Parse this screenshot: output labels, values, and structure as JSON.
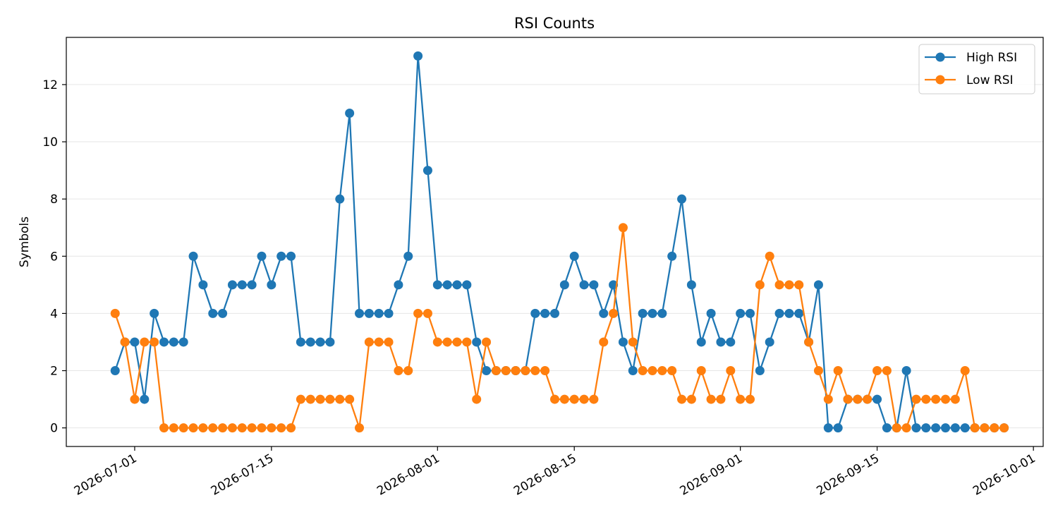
{
  "chart_data": {
    "type": "line",
    "title": "RSI Counts",
    "xlabel": "",
    "ylabel": "Symbols",
    "xlim": [
      "2026-06-24",
      "2026-10-02"
    ],
    "ylim": [
      -0.65,
      13.65
    ],
    "grid": "horizontal",
    "legend_position": "top-right",
    "x_ticks": [
      "2026-07-01",
      "2026-07-15",
      "2026-08-01",
      "2026-08-15",
      "2026-09-01",
      "2026-09-15",
      "2026-10-01"
    ],
    "y_ticks": [
      0,
      2,
      4,
      6,
      8,
      10,
      12
    ],
    "x": [
      "2026-06-29",
      "2026-06-30",
      "2026-07-01",
      "2026-07-02",
      "2026-07-03",
      "2026-07-04",
      "2026-07-05",
      "2026-07-06",
      "2026-07-07",
      "2026-07-08",
      "2026-07-09",
      "2026-07-10",
      "2026-07-11",
      "2026-07-12",
      "2026-07-13",
      "2026-07-14",
      "2026-07-15",
      "2026-07-16",
      "2026-07-17",
      "2026-07-18",
      "2026-07-19",
      "2026-07-20",
      "2026-07-21",
      "2026-07-22",
      "2026-07-23",
      "2026-07-24",
      "2026-07-25",
      "2026-07-26",
      "2026-07-27",
      "2026-07-28",
      "2026-07-29",
      "2026-07-30",
      "2026-07-31",
      "2026-08-01",
      "2026-08-02",
      "2026-08-03",
      "2026-08-04",
      "2026-08-05",
      "2026-08-06",
      "2026-08-07",
      "2026-08-08",
      "2026-08-09",
      "2026-08-10",
      "2026-08-11",
      "2026-08-12",
      "2026-08-13",
      "2026-08-14",
      "2026-08-15",
      "2026-08-16",
      "2026-08-17",
      "2026-08-18",
      "2026-08-19",
      "2026-08-20",
      "2026-08-21",
      "2026-08-22",
      "2026-08-23",
      "2026-08-24",
      "2026-08-25",
      "2026-08-26",
      "2026-08-27",
      "2026-08-28",
      "2026-08-29",
      "2026-08-30",
      "2026-08-31",
      "2026-09-01",
      "2026-09-02",
      "2026-09-03",
      "2026-09-04",
      "2026-09-05",
      "2026-09-06",
      "2026-09-07",
      "2026-09-08",
      "2026-09-09",
      "2026-09-10",
      "2026-09-11",
      "2026-09-12",
      "2026-09-13",
      "2026-09-14",
      "2026-09-15",
      "2026-09-16",
      "2026-09-17",
      "2026-09-18",
      "2026-09-19",
      "2026-09-20",
      "2026-09-21",
      "2026-09-22",
      "2026-09-23",
      "2026-09-24",
      "2026-09-25",
      "2026-09-26",
      "2026-09-27",
      "2026-09-28"
    ],
    "series": [
      {
        "name": "High RSI",
        "color": "#1f77b4",
        "values": [
          2,
          3,
          3,
          1,
          4,
          3,
          3,
          3,
          6,
          5,
          4,
          4,
          5,
          5,
          5,
          6,
          5,
          6,
          6,
          3,
          3,
          3,
          3,
          8,
          11,
          4,
          4,
          4,
          4,
          5,
          6,
          13,
          9,
          5,
          5,
          5,
          5,
          3,
          2,
          2,
          2,
          2,
          2,
          4,
          4,
          4,
          5,
          6,
          5,
          5,
          4,
          5,
          3,
          2,
          4,
          4,
          4,
          6,
          8,
          5,
          3,
          4,
          3,
          3,
          4,
          4,
          2,
          3,
          4,
          4,
          4,
          3,
          5,
          0,
          0,
          1,
          1,
          1,
          1,
          0,
          0,
          2,
          0,
          0,
          0,
          0,
          0,
          0,
          0,
          0,
          0,
          0
        ]
      },
      {
        "name": "Low RSI",
        "color": "#ff7f0e",
        "values": [
          4,
          3,
          1,
          3,
          3,
          0,
          0,
          0,
          0,
          0,
          0,
          0,
          0,
          0,
          0,
          0,
          0,
          0,
          0,
          1,
          1,
          1,
          1,
          1,
          1,
          0,
          3,
          3,
          3,
          2,
          2,
          4,
          4,
          3,
          3,
          3,
          3,
          1,
          3,
          2,
          2,
          2,
          2,
          2,
          2,
          1,
          1,
          1,
          1,
          1,
          3,
          4,
          7,
          3,
          2,
          2,
          2,
          2,
          1,
          1,
          2,
          1,
          1,
          2,
          1,
          1,
          5,
          6,
          5,
          5,
          5,
          3,
          2,
          1,
          2,
          1,
          1,
          1,
          2,
          2,
          0,
          0,
          1,
          1,
          1,
          1,
          1,
          2,
          0,
          0,
          0,
          0
        ]
      }
    ]
  }
}
